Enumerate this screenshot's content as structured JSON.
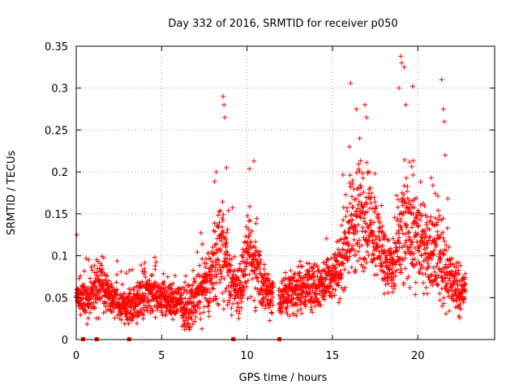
{
  "chart_data": {
    "type": "scatter",
    "title": "Day 332 of 2016, SRMTID for receiver p050",
    "xlabel": "GPS time / hours",
    "ylabel": "SRMTID / TECUs",
    "xlim": [
      0,
      24.5
    ],
    "ylim": [
      0,
      0.35
    ],
    "xticks": [
      0,
      5,
      10,
      15,
      20
    ],
    "xtick_labels": [
      "0",
      "5",
      "10",
      "15",
      "20"
    ],
    "yticks": [
      0,
      0.05,
      0.1,
      0.15,
      0.2,
      0.25,
      0.3,
      0.35
    ],
    "ytick_labels": [
      "0",
      "0.05",
      "0.1",
      "0.15",
      "0.2",
      "0.25",
      "0.3",
      "0.35"
    ],
    "grid": true,
    "marker": "+",
    "color": "#ff0000",
    "series": [
      {
        "name": "SRMTID",
        "profile": {
          "hours": [
            0.0,
            0.5,
            1.0,
            1.5,
            2.0,
            2.5,
            3.0,
            3.5,
            4.0,
            4.5,
            5.0,
            5.5,
            6.0,
            6.5,
            7.0,
            7.5,
            8.0,
            8.5,
            9.0,
            9.5,
            10.0,
            10.5,
            11.0,
            11.5,
            12.0,
            12.5,
            13.0,
            13.5,
            14.0,
            14.5,
            15.0,
            15.5,
            16.0,
            16.5,
            17.0,
            17.5,
            18.0,
            18.5,
            19.0,
            19.5,
            20.0,
            20.5,
            21.0,
            21.5,
            22.0,
            22.5,
            22.8
          ],
          "typical": [
            0.055,
            0.045,
            0.06,
            0.065,
            0.05,
            0.045,
            0.04,
            0.045,
            0.06,
            0.055,
            0.05,
            0.045,
            0.045,
            0.035,
            0.05,
            0.06,
            0.08,
            0.12,
            0.07,
            0.06,
            0.095,
            0.09,
            0.06,
            0.055,
            0.05,
            0.055,
            0.06,
            0.065,
            0.06,
            0.07,
            0.075,
            0.09,
            0.14,
            0.14,
            0.15,
            0.13,
            0.1,
            0.08,
            0.12,
            0.14,
            0.12,
            0.1,
            0.11,
            0.09,
            0.07,
            0.055,
            0.06
          ],
          "spread": [
            0.02,
            0.02,
            0.025,
            0.03,
            0.02,
            0.02,
            0.02,
            0.02,
            0.025,
            0.025,
            0.02,
            0.02,
            0.02,
            0.02,
            0.025,
            0.03,
            0.04,
            0.06,
            0.03,
            0.03,
            0.04,
            0.04,
            0.025,
            0.025,
            0.02,
            0.025,
            0.025,
            0.025,
            0.025,
            0.025,
            0.025,
            0.035,
            0.05,
            0.06,
            0.06,
            0.04,
            0.035,
            0.03,
            0.06,
            0.06,
            0.05,
            0.035,
            0.04,
            0.05,
            0.03,
            0.025,
            0.02
          ]
        },
        "peaks": [
          {
            "x": 8.6,
            "y": 0.29
          },
          {
            "x": 8.65,
            "y": 0.28
          },
          {
            "x": 8.7,
            "y": 0.265
          },
          {
            "x": 8.2,
            "y": 0.2
          },
          {
            "x": 8.8,
            "y": 0.205
          },
          {
            "x": 10.4,
            "y": 0.213
          },
          {
            "x": 16.0,
            "y": 0.23
          },
          {
            "x": 16.4,
            "y": 0.275
          },
          {
            "x": 16.9,
            "y": 0.28
          },
          {
            "x": 17.0,
            "y": 0.265
          },
          {
            "x": 16.6,
            "y": 0.24
          },
          {
            "x": 19.0,
            "y": 0.338
          },
          {
            "x": 19.05,
            "y": 0.33
          },
          {
            "x": 19.2,
            "y": 0.325
          },
          {
            "x": 18.9,
            "y": 0.3
          },
          {
            "x": 19.3,
            "y": 0.28
          },
          {
            "x": 19.7,
            "y": 0.302
          },
          {
            "x": 21.4,
            "y": 0.31
          },
          {
            "x": 21.5,
            "y": 0.275
          },
          {
            "x": 21.55,
            "y": 0.26
          },
          {
            "x": 21.6,
            "y": 0.22
          }
        ],
        "missing_data_markers_x": [
          0.4,
          1.2,
          3.1,
          9.2,
          11.9
        ]
      }
    ]
  }
}
